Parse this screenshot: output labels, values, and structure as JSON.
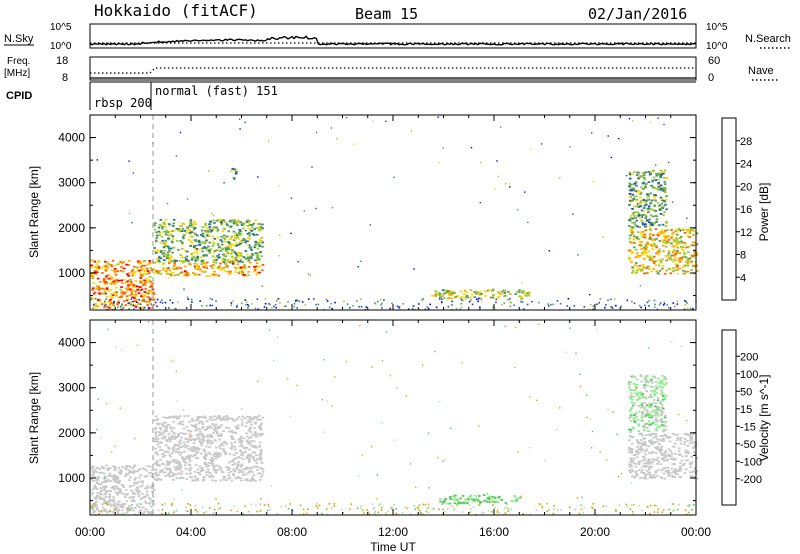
{
  "header": {
    "site": "Hokkaido (fitACF)",
    "beam": "Beam 15",
    "date": "02/Jan/2016"
  },
  "panels": {
    "nsky_label": "N.Sky",
    "nsky_ticks": [
      "10^5",
      "10^0"
    ],
    "nsearch_label": "N.Search",
    "nsearch_ticks": [
      "10^5",
      "10^0"
    ],
    "freq_label_1": "Freq.",
    "freq_label_2": "[MHz]",
    "freq_ticks": [
      "18",
      "8"
    ],
    "nave_label": "Nave",
    "nave_ticks": [
      "60",
      "0"
    ],
    "cpid_label": "CPID",
    "cpid_modes": [
      "rbsp 200",
      "normal (fast) 151"
    ]
  },
  "colors": {
    "power": [
      "#0000ff",
      "#1f4fb8",
      "#2e7d7a",
      "#5aa05a",
      "#9acd32",
      "#ffd700",
      "#ffa500",
      "#ff6600",
      "#ff0000"
    ],
    "velocity": [
      "#ff0000",
      "#ff6600",
      "#ffa500",
      "#cdaa00",
      "#c8c8c8",
      "#90ee90",
      "#5ac85a",
      "#2e7d7a",
      "#1e50b4",
      "#0000ff"
    ]
  },
  "chart_data": [
    {
      "type": "heatmap",
      "title": "Power",
      "ylabel": "Slant Range [km]",
      "xlabel": "",
      "y_ticks": [
        "4000",
        "3000",
        "2000",
        "1000"
      ],
      "ylim": [
        180,
        4500
      ],
      "colorbar_label": "Power [dB]",
      "colorbar_ticks": [
        "28",
        "24",
        "20",
        "16",
        "12",
        "8",
        "4"
      ],
      "colorbar_range": [
        0,
        32
      ],
      "regions": [
        {
          "t0": 0.0,
          "t1": 2.5,
          "r0": 200,
          "r1": 1300,
          "level": 24
        },
        {
          "t0": 2.5,
          "t1": 6.8,
          "r0": 950,
          "r1": 1250,
          "level": 22
        },
        {
          "t0": 2.5,
          "t1": 6.8,
          "r0": 1250,
          "r1": 2200,
          "level": 14
        },
        {
          "t0": 5.5,
          "t1": 5.8,
          "r0": 3100,
          "r1": 3350,
          "level": 12
        },
        {
          "t0": 13.5,
          "t1": 17.5,
          "r0": 450,
          "r1": 650,
          "level": 16
        },
        {
          "t0": 21.3,
          "t1": 24.0,
          "r0": 1000,
          "r1": 2000,
          "level": 20
        },
        {
          "t0": 21.3,
          "t1": 22.8,
          "r0": 2000,
          "r1": 3300,
          "level": 12
        }
      ]
    },
    {
      "type": "heatmap",
      "title": "Velocity",
      "ylabel": "Slant Range [km]",
      "xlabel": "Time UT",
      "x_ticks": [
        "00:00",
        "04:00",
        "08:00",
        "12:00",
        "16:00",
        "20:00",
        "00:00"
      ],
      "y_ticks": [
        "4000",
        "3000",
        "2000",
        "1000"
      ],
      "ylim": [
        180,
        4500
      ],
      "colorbar_label": "Velocity [m s^-1]",
      "colorbar_ticks": [
        "200",
        "100",
        "50",
        "15",
        "-15",
        "-50",
        "-100",
        "-200"
      ],
      "regions": [
        {
          "t0": 0.0,
          "t1": 2.5,
          "r0": 200,
          "r1": 1300,
          "velocity": 0
        },
        {
          "t0": 2.5,
          "t1": 6.8,
          "r0": 950,
          "r1": 2400,
          "velocity": 0
        },
        {
          "t0": 13.8,
          "t1": 17.0,
          "r0": 450,
          "r1": 650,
          "velocity": 60
        },
        {
          "t0": 21.3,
          "t1": 24.0,
          "r0": 1000,
          "r1": 2000,
          "velocity": 0
        },
        {
          "t0": 21.3,
          "t1": 22.8,
          "r0": 2000,
          "r1": 3300,
          "velocity": 30
        }
      ]
    }
  ]
}
